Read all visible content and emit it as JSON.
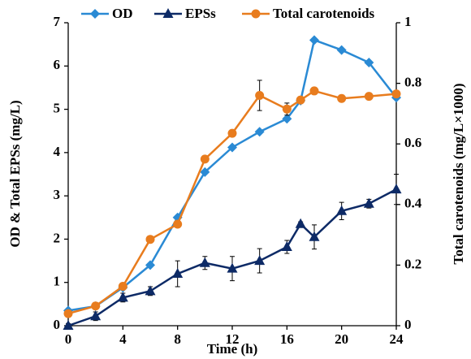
{
  "chart_data": {
    "type": "line",
    "x_label": "Time (h)",
    "y_label": "OD & Total EPSs (mg/L)",
    "y2_label": "Total carotenoids (mg/L×1000)",
    "x": [
      0,
      2,
      4,
      6,
      8,
      10,
      12,
      14,
      16,
      17,
      18,
      20,
      22,
      24
    ],
    "xlim": [
      0,
      24
    ],
    "xticks": [
      0,
      4,
      8,
      12,
      16,
      20,
      24
    ],
    "ylim": [
      0,
      7
    ],
    "yticks": [
      0,
      1,
      2,
      3,
      4,
      5,
      6,
      7
    ],
    "y2lim": [
      0,
      1
    ],
    "y2ticks": [
      0,
      0.2,
      0.4,
      0.6,
      0.8,
      1
    ],
    "legend": "top",
    "series": [
      {
        "name": "OD",
        "color": "#2a8ad4",
        "marker": "diamond",
        "values": [
          0.35,
          0.45,
          0.88,
          1.4,
          2.5,
          3.55,
          4.12,
          4.48,
          4.78,
          5.2,
          6.6,
          6.37,
          6.08,
          5.27
        ]
      },
      {
        "name": "EPSs",
        "color": "#0d2a66",
        "marker": "triangle",
        "values": [
          0,
          0.22,
          0.65,
          0.8,
          1.2,
          1.45,
          1.32,
          1.5,
          1.82,
          2.35,
          2.05,
          2.65,
          2.82,
          3.15
        ],
        "errors": [
          0.05,
          0.1,
          0.1,
          0.1,
          0.3,
          0.15,
          0.28,
          0.28,
          0.15,
          0.05,
          0.28,
          0.2,
          0.1,
          0.35
        ]
      },
      {
        "name": "Total carotenoids",
        "color": "#e87c1e",
        "marker": "circle",
        "axis": "y2",
        "values": [
          0.04,
          0.065,
          0.13,
          0.285,
          0.335,
          0.55,
          0.635,
          0.76,
          0.715,
          0.745,
          0.775,
          0.75,
          0.757,
          0.765
        ],
        "errors": [
          0.01,
          0.01,
          0.01,
          0.01,
          0.01,
          0.01,
          0.01,
          0.05,
          0.02,
          0.01,
          0.01,
          0.01,
          0.01,
          0.01
        ]
      }
    ]
  }
}
